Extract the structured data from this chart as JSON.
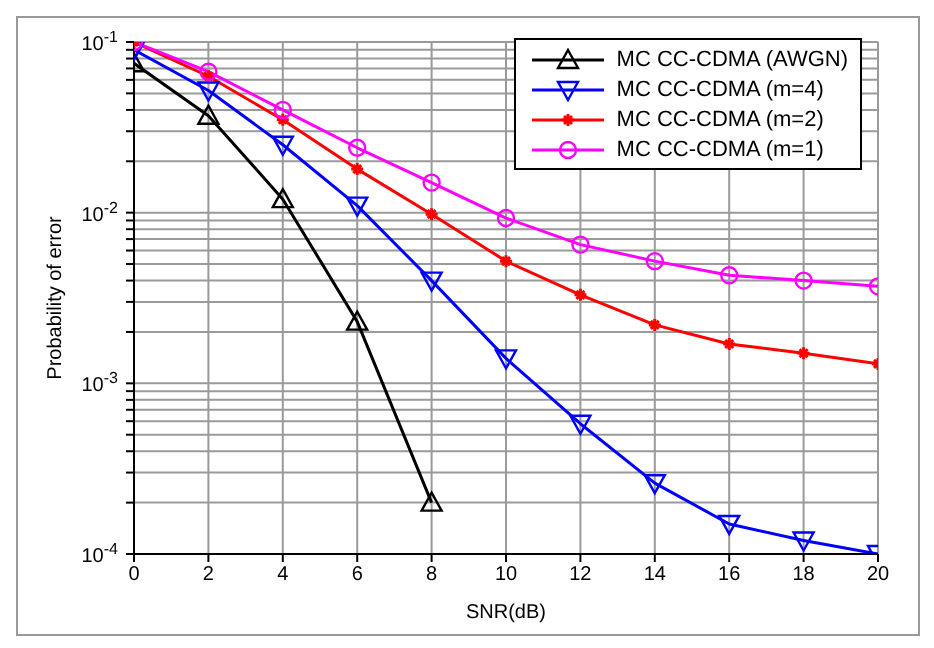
{
  "chart_data": {
    "type": "line",
    "xlabel": "SNR(dB)",
    "ylabel": "Probability of error",
    "x": [
      0,
      2,
      4,
      6,
      8,
      10,
      12,
      14,
      16,
      18,
      20
    ],
    "series": [
      {
        "name": "MC CC-CDMA (AWGN)",
        "color": "#000000",
        "marker": "triangle",
        "values": [
          0.075,
          0.037,
          0.012,
          0.0023,
          0.0002,
          null,
          null,
          null,
          null,
          null,
          null
        ]
      },
      {
        "name": "MC CC-CDMA (m=4)",
        "color": "#0000ff",
        "marker": "triangle-down",
        "values": [
          0.09,
          0.052,
          0.025,
          0.011,
          0.004,
          0.0014,
          0.00058,
          0.00026,
          0.00015,
          0.00012,
          0.0001
        ]
      },
      {
        "name": "MC CC-CDMA (m=2)",
        "color": "#ff0000",
        "marker": "cross",
        "values": [
          0.1,
          0.063,
          0.035,
          0.018,
          0.0098,
          0.0052,
          0.0033,
          0.0022,
          0.0017,
          0.0015,
          0.0013
        ]
      },
      {
        "name": "MC CC-CDMA (m=1)",
        "color": "#ff00ff",
        "marker": "circle",
        "values": [
          0.1,
          0.067,
          0.04,
          0.024,
          0.015,
          0.0093,
          0.0065,
          0.0052,
          0.0043,
          0.004,
          0.0037
        ]
      }
    ],
    "log": "y",
    "grid": true,
    "legend": "top right",
    "line_style": "solid",
    "xlim": [
      0,
      20
    ],
    "xticks": [
      0,
      2,
      4,
      6,
      8,
      10,
      12,
      14,
      16,
      18,
      20
    ],
    "ylim": [
      0.0001,
      0.1
    ],
    "yticks": [
      {
        "value": 0.0001,
        "label": "10$^{-4}$"
      },
      {
        "value": 0.0002,
        "label": null
      },
      {
        "value": 0.0003,
        "label": null
      },
      {
        "value": 0.0004,
        "label": null
      },
      {
        "value": 0.0005,
        "label": null
      },
      {
        "value": 0.0006,
        "label": null
      },
      {
        "value": 0.0007,
        "label": null
      },
      {
        "value": 0.0008,
        "label": null
      },
      {
        "value": 0.0009,
        "label": null
      },
      {
        "value": 0.001,
        "label": "10$^{-3}$"
      },
      {
        "value": 0.002,
        "label": null
      },
      {
        "value": 0.003,
        "label": null
      },
      {
        "value": 0.004,
        "label": null
      },
      {
        "value": 0.005,
        "label": null
      },
      {
        "value": 0.006,
        "label": null
      },
      {
        "value": 0.007,
        "label": null
      },
      {
        "value": 0.008,
        "label": null
      },
      {
        "value": 0.009,
        "label": null
      },
      {
        "value": 0.01,
        "label": "10$^{-2}$"
      },
      {
        "value": 0.02,
        "label": null
      },
      {
        "value": 0.03,
        "label": null
      },
      {
        "value": 0.04,
        "label": null
      },
      {
        "value": 0.05,
        "label": null
      },
      {
        "value": 0.06,
        "label": null
      },
      {
        "value": 0.07,
        "label": null
      },
      {
        "value": 0.08,
        "label": null
      },
      {
        "value": 0.09,
        "label": null
      },
      {
        "value": 0.1,
        "label": "10$^{-1}$"
      }
    ]
  }
}
